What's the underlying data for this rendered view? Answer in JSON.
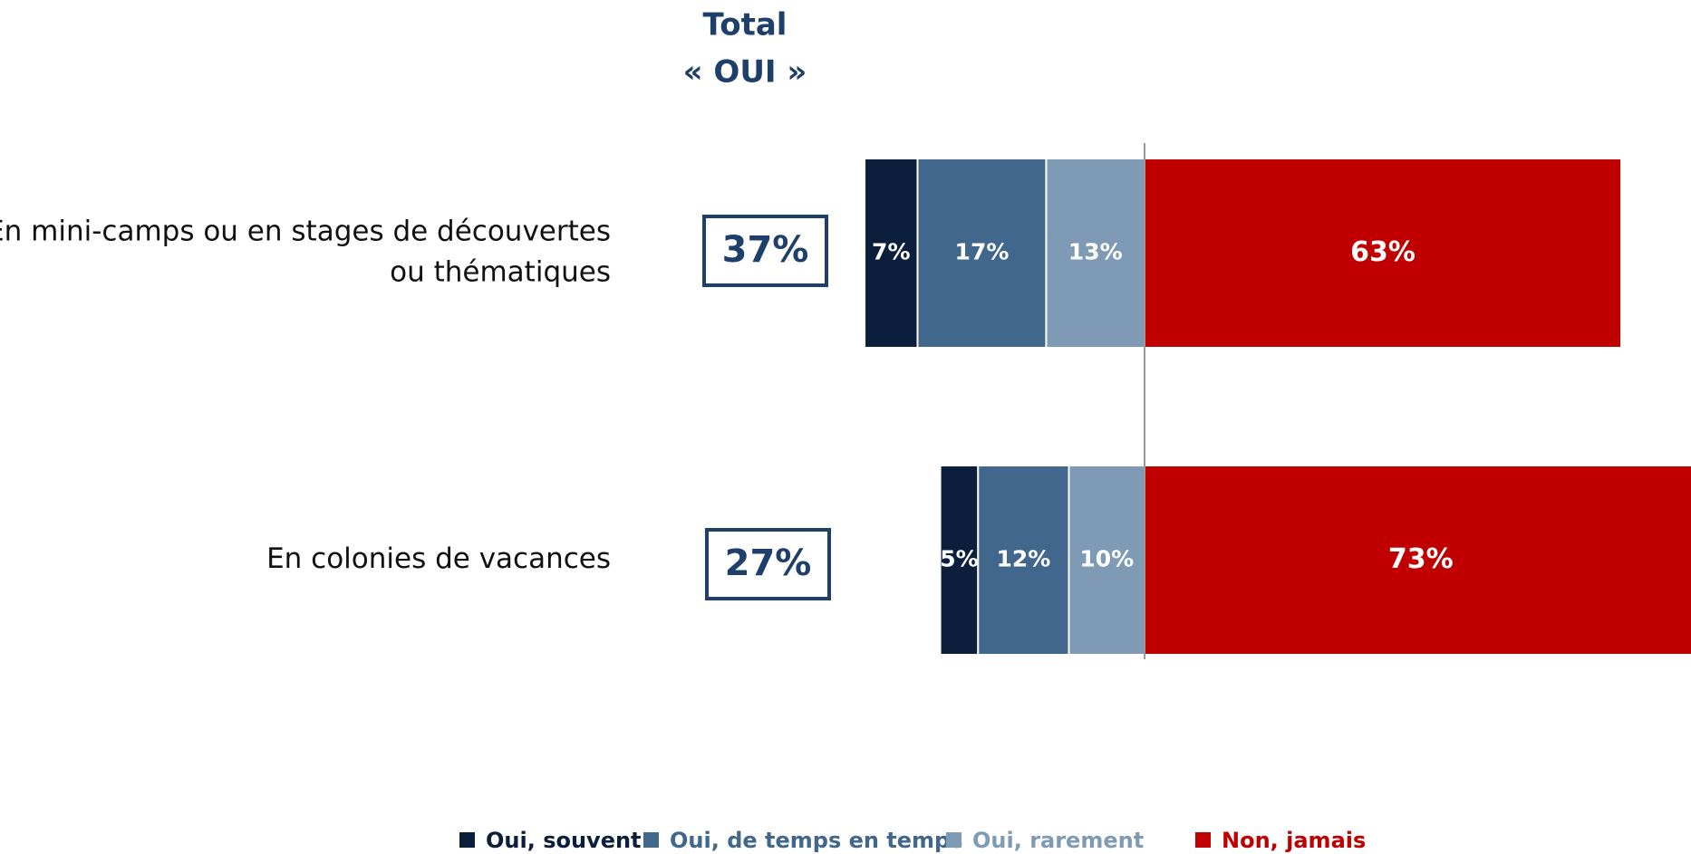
{
  "chart_data": {
    "type": "diverging_bar",
    "total_header": [
      "Total",
      "« OUI »"
    ],
    "categories": [
      [
        "En mini-camps ou en stages de découvertes",
        "ou thématiques"
      ],
      [
        "En colonies de vacances"
      ]
    ],
    "totals": [
      37,
      27
    ],
    "total_labels": [
      "37%",
      "27%"
    ],
    "series": [
      {
        "name": "Oui, souvent",
        "color": "#0b1f3d",
        "side": "left",
        "values": [
          7,
          5
        ],
        "value_labels": [
          "7%",
          "5%"
        ]
      },
      {
        "name": "Oui, de temps en temps",
        "color": "#41678c",
        "side": "left",
        "values": [
          17,
          12
        ],
        "value_labels": [
          "17%",
          "12%"
        ]
      },
      {
        "name": "Oui, rarement",
        "color": "#7f9ab4",
        "side": "left",
        "values": [
          13,
          10
        ],
        "value_labels": [
          "13%",
          "10%"
        ]
      },
      {
        "name": "Non, jamais",
        "color": "#c00000",
        "side": "right",
        "values": [
          63,
          73
        ],
        "value_labels": [
          "63%",
          "73%"
        ]
      }
    ]
  }
}
